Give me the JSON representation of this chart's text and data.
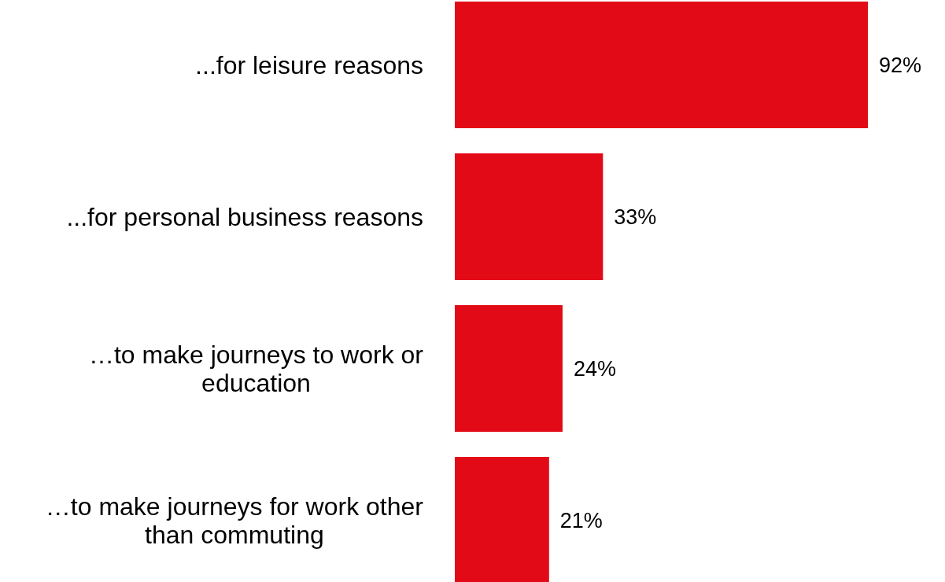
{
  "chart_data": {
    "type": "bar",
    "orientation": "horizontal",
    "categories": [
      "...for leisure reasons",
      "...for personal business reasons",
      "…to make journeys to work or education",
      "…to make journeys for work other than commuting"
    ],
    "values": [
      92,
      33,
      24,
      21
    ],
    "value_labels": [
      "92%",
      "33%",
      "24%",
      "21%"
    ],
    "color": "#e30a17",
    "grid": false,
    "legend": false
  }
}
